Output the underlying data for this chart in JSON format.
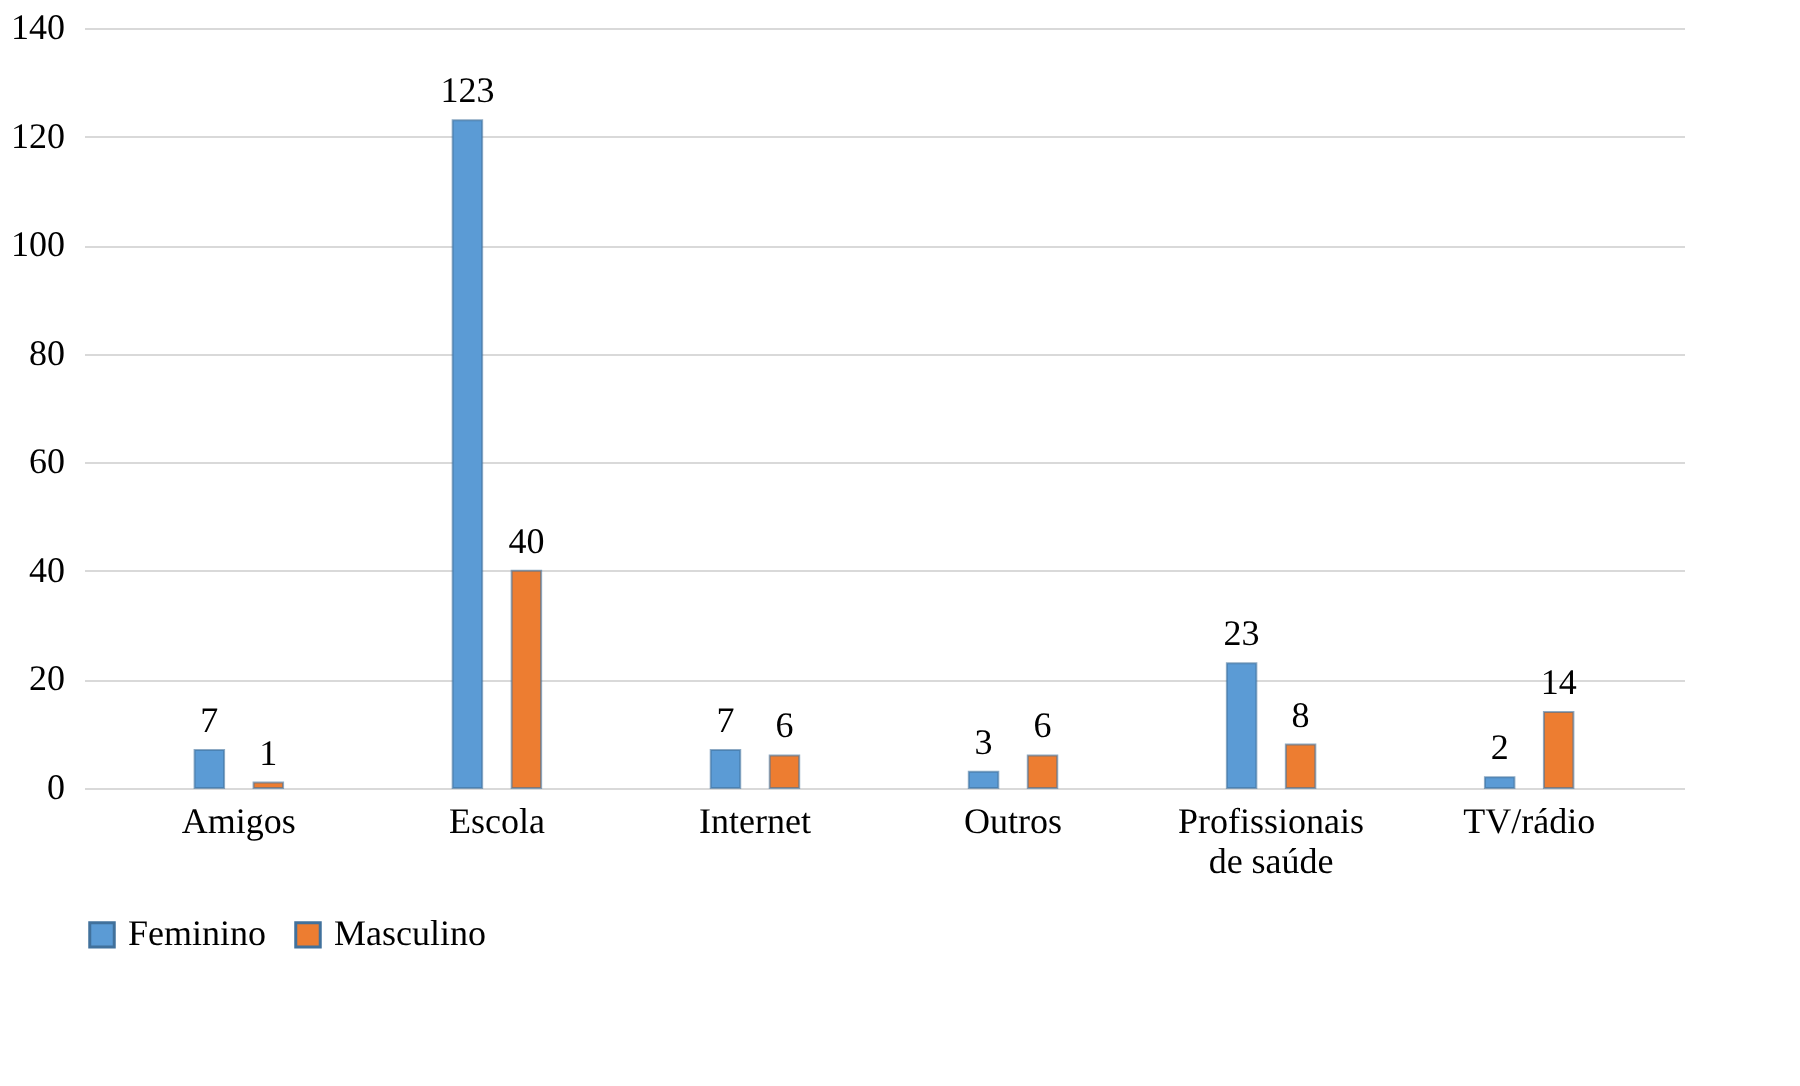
{
  "chart_data": {
    "type": "bar",
    "categories": [
      "Amigos",
      "Escola",
      "Internet",
      "Outros",
      "Profissionais de saúde",
      "TV/rádio"
    ],
    "series": [
      {
        "name": "Feminino",
        "color": "#5b9bd5",
        "values": [
          7,
          123,
          7,
          3,
          23,
          2
        ]
      },
      {
        "name": "Masculino",
        "color": "#ed7d31",
        "values": [
          1,
          40,
          6,
          6,
          8,
          14
        ]
      }
    ],
    "ylim": [
      0,
      140
    ],
    "yticks": [
      0,
      20,
      40,
      60,
      80,
      100,
      120,
      140
    ],
    "grid": "y",
    "legend": "bottom",
    "data_labels": true
  }
}
